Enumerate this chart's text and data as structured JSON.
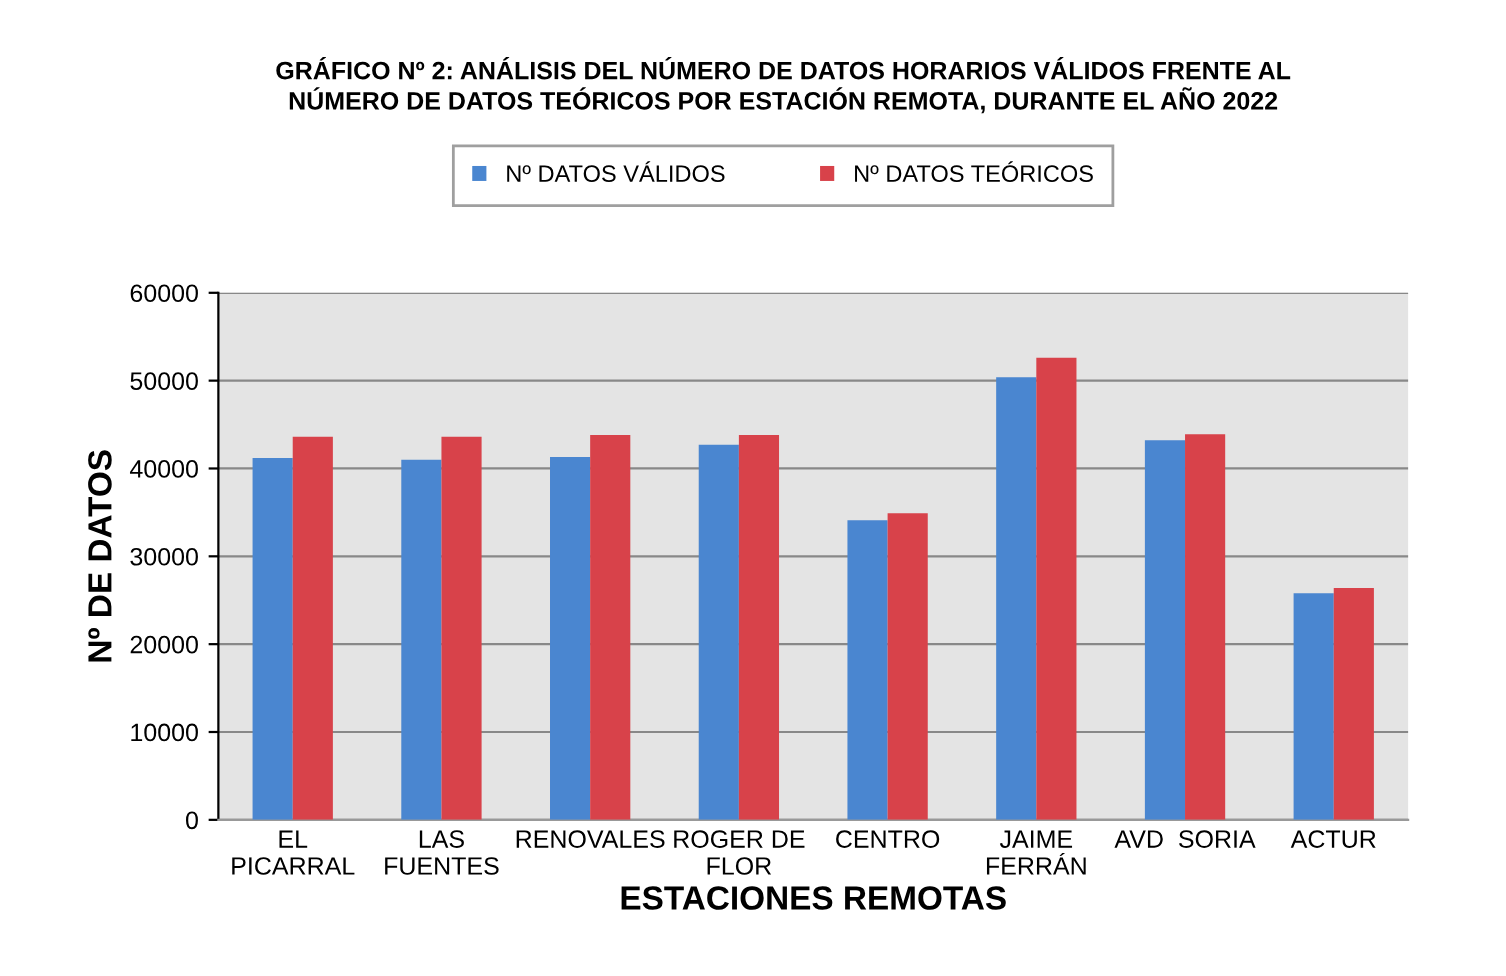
{
  "chart_data": {
    "type": "bar",
    "title": "GRÁFICO Nº 2: ANÁLISIS DEL NÚMERO DE DATOS HORARIOS VÁLIDOS FRENTE AL\nNÚMERO DE DATOS TEÓRICOS POR ESTACIÓN REMOTA, DURANTE EL AÑO 2022",
    "xlabel": "ESTACIONES REMOTAS",
    "ylabel": "Nº DE DATOS",
    "categories": [
      "EL\nPICARRAL",
      "LAS\nFUENTES",
      "RENOVALES",
      "ROGER DE\nFLOR",
      "CENTRO",
      "JAIME\nFERRÁN",
      "AVD  SORIA",
      "ACTUR"
    ],
    "series": [
      {
        "name": "Nº DATOS VÁLIDOS",
        "color": "#4a86d0",
        "values": [
          41200,
          41000,
          41300,
          42700,
          34100,
          50400,
          43200,
          25800
        ]
      },
      {
        "name": "Nº DATOS TEÓRICOS",
        "color": "#d8424a",
        "values": [
          43600,
          43600,
          43800,
          43800,
          34900,
          52600,
          43900,
          26400
        ]
      }
    ],
    "ylim": [
      0,
      60000
    ],
    "yticks": [
      0,
      10000,
      20000,
      30000,
      40000,
      50000,
      60000
    ],
    "grid": "y",
    "legend": "top"
  }
}
